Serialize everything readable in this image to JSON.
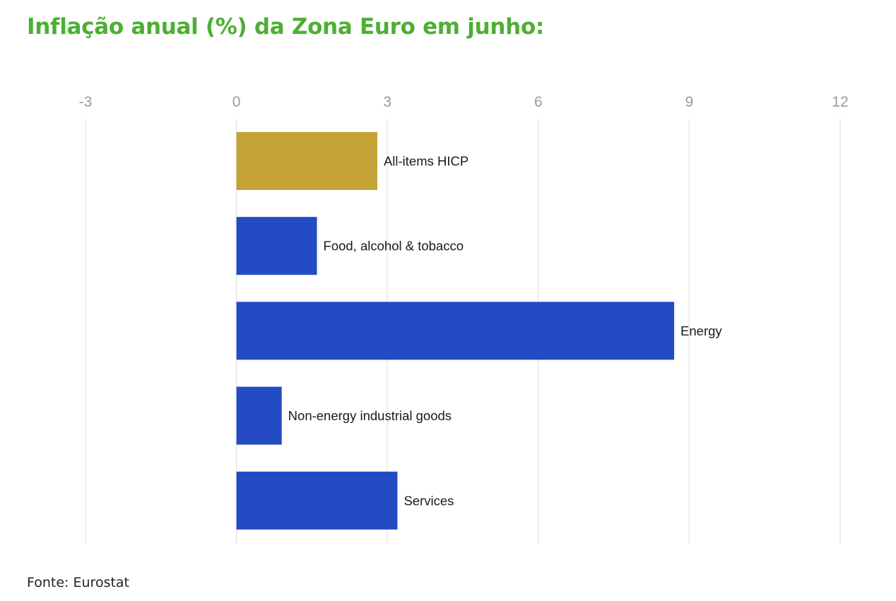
{
  "title": "Inflação anual (%) da Zona Euro em junho:",
  "source": "Fonte: Eurostat",
  "colors": {
    "title": "#4caf34",
    "highlight_bar": "#c4a236",
    "bar": "#224bc4",
    "gridline": "#e2e2e2",
    "tick_label": "#9a9a9a"
  },
  "chart_data": {
    "type": "bar",
    "orientation": "horizontal",
    "categories": [
      "All-items HICP",
      "Food, alcohol & tobacco",
      "Energy",
      "Non-energy industrial goods",
      "Services"
    ],
    "values": [
      2.8,
      1.6,
      8.7,
      0.9,
      3.2
    ],
    "highlight": [
      "All-items HICP"
    ],
    "xlim": [
      -3,
      12
    ],
    "xticks": [
      -3,
      0,
      3,
      6,
      9,
      12
    ],
    "xtick_labels": [
      "-3",
      "0",
      "3",
      "6",
      "9",
      "12"
    ],
    "axis_position": "top",
    "grid": true,
    "legend": false,
    "labels_position": "right of bar"
  }
}
